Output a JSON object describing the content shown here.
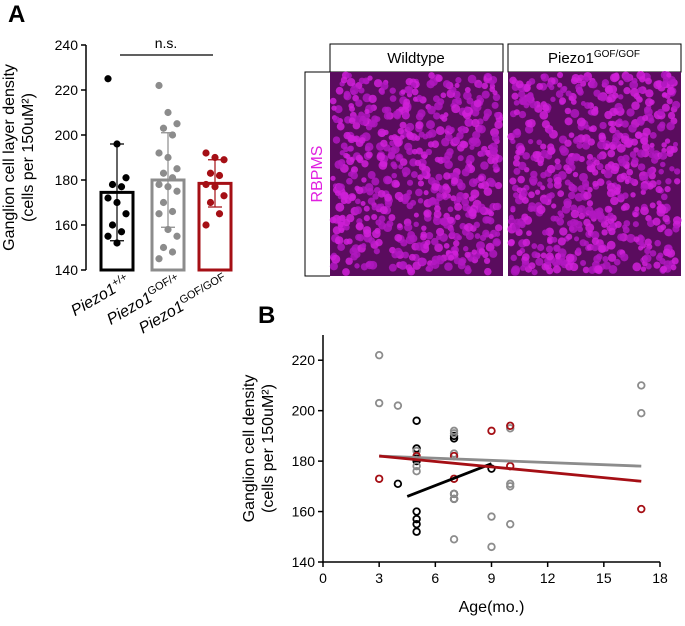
{
  "panel_labels": [
    "A",
    "B"
  ],
  "images": {
    "stain": "RBPMS",
    "panels": [
      {
        "label": "Wildtype"
      },
      {
        "label": "Piezo1",
        "sup": "GOF/GOF"
      }
    ]
  },
  "chart_data": [
    {
      "type": "bar",
      "y_label": [
        "Ganglion cell layer density",
        "(cells per 150uM²)"
      ],
      "categories": [
        {
          "name": "Piezo1",
          "sup": "+/+"
        },
        {
          "name": "Piezo1",
          "sup": "GOF/+"
        },
        {
          "name": "Piezo1",
          "sup": "GOF/GOF"
        }
      ],
      "colors": [
        "#000000",
        "#8c8c8c",
        "#a50f15"
      ],
      "values": [
        174.5,
        180,
        178.5
      ],
      "errors": [
        21.5,
        21,
        10.5
      ],
      "points": [
        [
          225,
          196,
          181,
          178,
          177,
          172,
          170,
          165,
          160,
          157,
          155,
          152
        ],
        [
          222,
          210,
          205,
          203,
          200,
          192,
          190,
          185,
          183,
          181,
          178,
          177,
          175,
          170,
          166,
          165,
          158,
          155,
          150,
          148,
          145
        ],
        [
          192,
          190,
          189,
          183,
          182,
          178,
          177,
          173,
          170,
          165,
          160
        ]
      ],
      "annotation": "n.s.",
      "ylim": [
        140,
        240
      ],
      "yticks": [
        140,
        160,
        180,
        200,
        220,
        240
      ]
    },
    {
      "type": "scatter",
      "y_label": [
        "Ganglion cell density",
        "(cells per 150uM²)"
      ],
      "x_label": "Age(mo.)",
      "xlim": [
        0,
        18
      ],
      "xticks": [
        0,
        3,
        6,
        9,
        12,
        15,
        18
      ],
      "ylim": [
        140,
        230
      ],
      "yticks": [
        140,
        160,
        180,
        200,
        220
      ],
      "series": [
        {
          "color": "#000000",
          "x": [
            4,
            5,
            5,
            5,
            5,
            5,
            5,
            5,
            5,
            7,
            7,
            7,
            7,
            9
          ],
          "y": [
            171,
            196,
            185,
            181,
            180,
            160,
            157,
            155,
            152,
            190,
            189,
            167,
            165,
            177
          ],
          "fit_x": [
            4.5,
            9
          ],
          "fit_y": [
            166,
            179
          ]
        },
        {
          "color": "#8c8c8c",
          "x": [
            3,
            3,
            4,
            5,
            5,
            5,
            7,
            7,
            7,
            7,
            7,
            7,
            9,
            9,
            10,
            10,
            10,
            10,
            17,
            17
          ],
          "y": [
            222,
            203,
            202,
            184,
            178,
            176,
            192,
            191,
            183,
            167,
            165,
            149,
            158,
            146,
            193,
            171,
            170,
            155,
            210,
            199
          ],
          "fit_x": [
            3,
            17
          ],
          "fit_y": [
            182,
            178
          ]
        },
        {
          "color": "#a50f15",
          "x": [
            3,
            5,
            7,
            7,
            9,
            10,
            10,
            17
          ],
          "y": [
            173,
            182,
            182,
            173,
            192,
            194,
            178,
            161
          ],
          "fit_x": [
            3,
            17
          ],
          "fit_y": [
            182,
            172
          ]
        }
      ]
    }
  ]
}
